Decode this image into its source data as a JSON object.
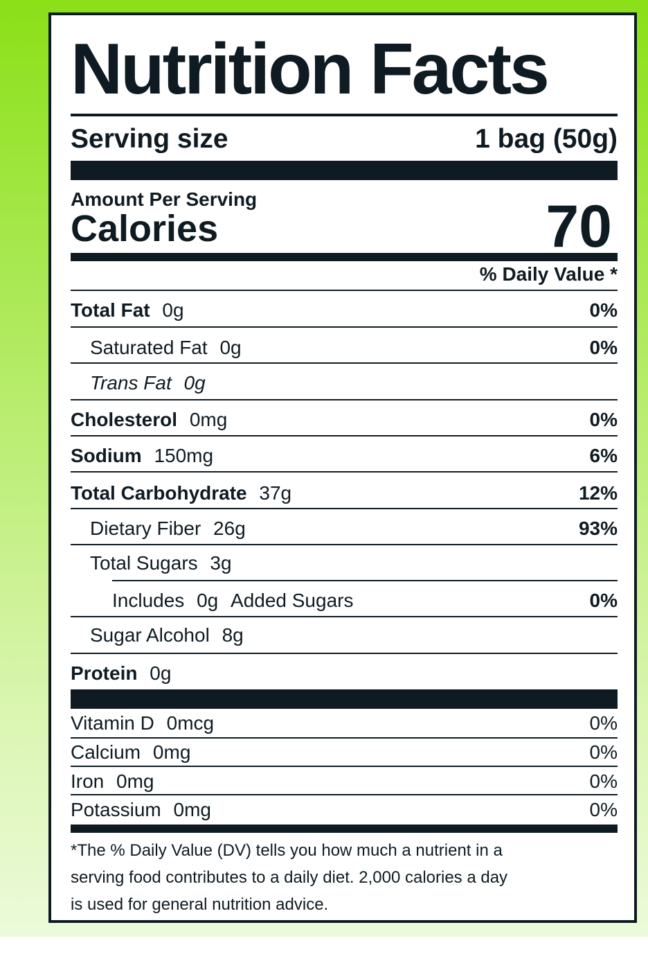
{
  "label": {
    "title": "Nutrition Facts",
    "serving_size_label": "Serving size",
    "serving_size_value": "1 bag (50g)",
    "amount_per_serving": "Amount Per Serving",
    "calories_label": "Calories",
    "calories_value": "70",
    "daily_value_header": "% Daily Value *",
    "nutrients": [
      {
        "name": "Total Fat",
        "amount": "0g",
        "dv": "0%"
      },
      {
        "name": "Saturated Fat",
        "amount": "0g",
        "dv": "0%"
      },
      {
        "name": "Trans Fat",
        "amount": "0g"
      },
      {
        "name": "Cholesterol",
        "amount": "0mg",
        "dv": "0%"
      },
      {
        "name": "Sodium",
        "amount": "150mg",
        "dv": "6%"
      },
      {
        "name": "Total Carbohydrate",
        "amount": "37g",
        "dv": "12%"
      },
      {
        "name": "Dietary Fiber",
        "amount": "26g",
        "dv": "93%"
      },
      {
        "name": "Total Sugars",
        "amount": "3g"
      },
      {
        "name": "Includes",
        "amount": "0g",
        "suffix": "Added Sugars",
        "dv": "0%"
      },
      {
        "name": "Sugar Alcohol",
        "amount": "8g"
      },
      {
        "name": "Protein",
        "amount": "0g"
      }
    ],
    "vitamins": [
      {
        "name": "Vitamin D",
        "amount": "0mcg",
        "dv": "0%"
      },
      {
        "name": "Calcium",
        "amount": "0mg",
        "dv": "0%"
      },
      {
        "name": "Iron",
        "amount": "0mg",
        "dv": "0%"
      },
      {
        "name": "Potassium",
        "amount": "0mg",
        "dv": "0%"
      }
    ],
    "footnote_lines": [
      "*The % Daily Value (DV) tells you how much a nutrient in a",
      "serving food contributes to a daily diet. 2,000 calories a day",
      "is used for general nutrition advice."
    ]
  },
  "colors": {
    "ink": "#0f1b22",
    "background_top": "#8be018",
    "background_bottom": "#eefbe0",
    "panel": "#ffffff"
  }
}
